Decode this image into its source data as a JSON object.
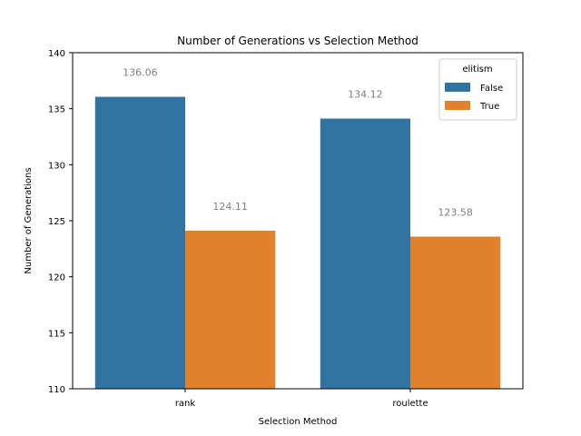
{
  "chart_data": {
    "type": "bar",
    "title": "Number of Generations vs Selection Method",
    "xlabel": "Selection Method",
    "ylabel": "Number of Generations",
    "categories": [
      "rank",
      "roulette"
    ],
    "series": [
      {
        "name": "False",
        "values": [
          136.06,
          134.12
        ],
        "color": "#3274a1"
      },
      {
        "name": "True",
        "values": [
          124.11,
          123.58
        ],
        "color": "#e1812c"
      }
    ],
    "data_labels": [
      [
        "136.06",
        "134.12"
      ],
      [
        "124.11",
        "123.58"
      ]
    ],
    "ylim": [
      110,
      140
    ],
    "yticks": [
      "110",
      "115",
      "120",
      "125",
      "130",
      "135",
      "140"
    ],
    "grid": false,
    "legend": {
      "title": "elitism",
      "entries": [
        "False",
        "True"
      ],
      "placement": "top-right"
    }
  }
}
